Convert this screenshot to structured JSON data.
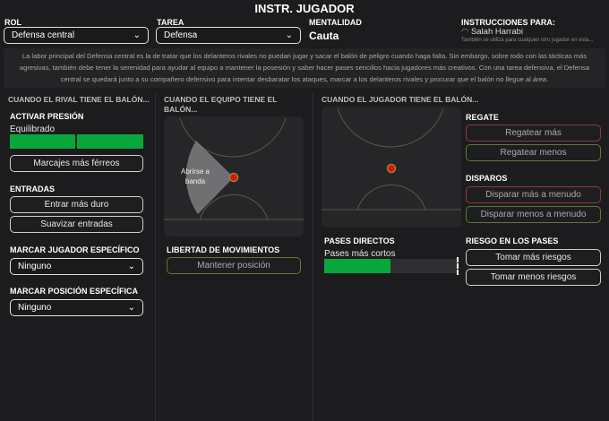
{
  "title": "INSTR. JUGADOR",
  "role": {
    "label": "ROL",
    "value": "Defensa central"
  },
  "duty": {
    "label": "TAREA",
    "value": "Defensa"
  },
  "mentality": {
    "label": "MENTALIDAD",
    "value": "Cauta"
  },
  "instructions_for": {
    "label": "INSTRUCCIONES PARA:",
    "player": "Salah Harrabi",
    "note": "También se utiliza para cualquier otro jugador en esta..."
  },
  "description": "La labor principal del Defensa central es la de tratar que los delanteros rivales no puedan jugar y sacar el balón de peligro cuando haga falta. Sin embargo, sobre todo con las tácticas más agresivas, también debe tener la serenidad para ayudar al equipo a mantener la posesión y saber hacer pases sencillos hacia jugadores más creativos. Con una tarea defensiva, el Defensa central se quedará junto a su compañero defensivo para intentar desbaratar los ataques, marcar a los delanteros rivales y procurar que el balón no llegue al área.",
  "out_of_possession": {
    "heading": "CUANDO EL RIVAL TIENE EL BALÓN...",
    "pressing": {
      "label": "ACTIVAR PRESIÓN",
      "value": "Equilibrado",
      "fill_percent": 100,
      "button": "Marcajes más férreos"
    },
    "tackling": {
      "label": "ENTRADAS",
      "buttons": [
        "Entrar más duro",
        "Suavizar entradas"
      ]
    },
    "mark_player": {
      "label": "MARCAR JUGADOR ESPECÍFICO",
      "value": "Ninguno"
    },
    "mark_position": {
      "label": "MARCAR POSICIÓN ESPECÍFICA",
      "value": "Ninguno"
    }
  },
  "team_in_possession": {
    "heading": "CUANDO EL EQUIPO TIENE EL BALÓN...",
    "zone_label": "Abrirse a banda",
    "freedom": {
      "label": "LIBERTAD DE MOVIMIENTOS",
      "button": "Mantener posición"
    }
  },
  "player_in_possession": {
    "heading": "CUANDO EL JUGADOR TIENE EL BALÓN...",
    "dribbling": {
      "label": "REGATE",
      "buttons": [
        "Regatear más",
        "Regatear menos"
      ]
    },
    "shooting": {
      "label": "DISPAROS",
      "buttons": [
        "Disparar más a menudo",
        "Disparar menos a menudo"
      ]
    },
    "passing_directness": {
      "label": "PASES DIRECTOS",
      "value": "Pases más cortos",
      "fill_percent": 50
    },
    "passing_risk": {
      "label": "RIESGO EN LOS PASES",
      "buttons": [
        "Tomar más riesgos",
        "Tomar menos riesgos"
      ]
    }
  },
  "colors": {
    "green": "#08a73c",
    "marker": "#e0100c",
    "red_border": "#8a3a3e",
    "green_border": "#5b7a3a"
  }
}
